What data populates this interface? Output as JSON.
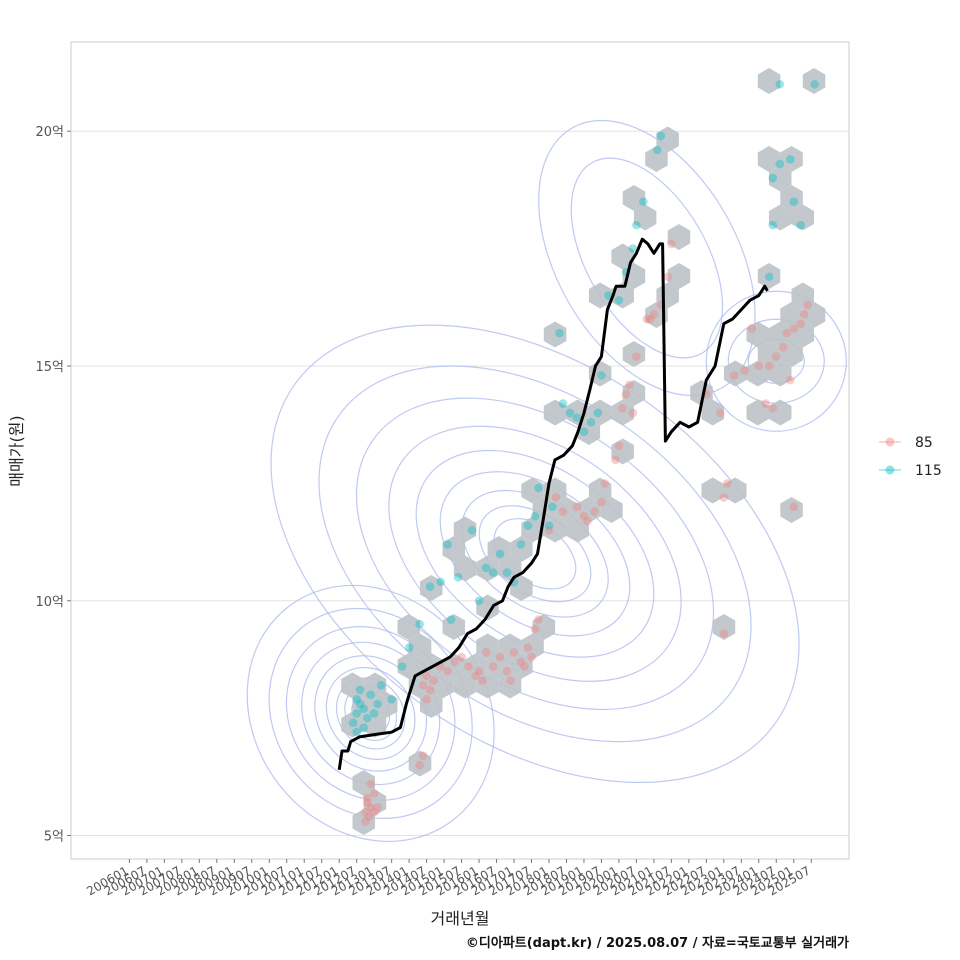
{
  "chart_data": {
    "type": "scatter",
    "title": "",
    "xlabel": "거래년월",
    "ylabel": "매매가(원)",
    "caption": "©디아파트(dapt.kr) / 2025.08.07 / 자료=국토교통부 실거래가",
    "x_tick_labels": [
      "200601",
      "200607",
      "200701",
      "200707",
      "200801",
      "200807",
      "200901",
      "200907",
      "201001",
      "201007",
      "201101",
      "201107",
      "201201",
      "201207",
      "201301",
      "201307",
      "201401",
      "201407",
      "201501",
      "201507",
      "201601",
      "201607",
      "201701",
      "201707",
      "201801",
      "201807",
      "201901",
      "201907",
      "202001",
      "202007",
      "202101",
      "202107",
      "202201",
      "202207",
      "202301",
      "202307",
      "202401",
      "202407",
      "202501",
      "202507"
    ],
    "y_tick_labels": [
      "5억",
      "10억",
      "15억",
      "20억"
    ],
    "y_tick_values": [
      5,
      10,
      15,
      20
    ],
    "ylim": [
      4.5,
      21.9
    ],
    "xlim": [
      2004.33,
      2026.58
    ],
    "grid": true,
    "legend_position": "right",
    "colors": {
      "85": "#f08080",
      "115": "#00bfc4",
      "trend": "#000000",
      "contour": "#a9b8ee",
      "hex": "#bcc2c8"
    },
    "series": [
      {
        "name": "85",
        "points": [
          [
            2012.75,
            5.3
          ],
          [
            2012.75,
            5.5
          ],
          [
            2012.8,
            5.7
          ],
          [
            2012.85,
            5.4
          ],
          [
            2012.9,
            5.6
          ],
          [
            2013.0,
            5.5
          ],
          [
            2013.0,
            5.9
          ],
          [
            2012.9,
            6.1
          ],
          [
            2013.1,
            5.6
          ],
          [
            2012.8,
            5.8
          ],
          [
            2014.4,
            8.2
          ],
          [
            2014.5,
            8.4
          ],
          [
            2014.6,
            8.1
          ],
          [
            2014.7,
            8.3
          ],
          [
            2014.5,
            7.9
          ],
          [
            2014.9,
            8.6
          ],
          [
            2015.1,
            8.5
          ],
          [
            2015.3,
            8.7
          ],
          [
            2015.5,
            8.8
          ],
          [
            2015.7,
            8.6
          ],
          [
            2015.9,
            8.4
          ],
          [
            2016.0,
            8.5
          ],
          [
            2016.2,
            8.9
          ],
          [
            2016.4,
            8.6
          ],
          [
            2016.6,
            8.8
          ],
          [
            2016.8,
            8.5
          ],
          [
            2017.0,
            8.9
          ],
          [
            2017.2,
            8.7
          ],
          [
            2017.4,
            9.0
          ],
          [
            2017.5,
            8.8
          ],
          [
            2017.6,
            9.4
          ],
          [
            2017.7,
            9.6
          ],
          [
            2017.3,
            8.6
          ],
          [
            2016.9,
            8.3
          ],
          [
            2016.1,
            8.3
          ],
          [
            2014.3,
            6.5
          ],
          [
            2014.4,
            6.7
          ],
          [
            2018.0,
            11.5
          ],
          [
            2018.2,
            12.2
          ],
          [
            2018.4,
            11.9
          ],
          [
            2018.8,
            12.0
          ],
          [
            2019.0,
            11.8
          ],
          [
            2019.1,
            11.7
          ],
          [
            2019.3,
            11.9
          ],
          [
            2019.5,
            12.1
          ],
          [
            2019.6,
            12.5
          ],
          [
            2019.9,
            13.0
          ],
          [
            2020.0,
            13.3
          ],
          [
            2020.1,
            14.1
          ],
          [
            2020.2,
            14.4
          ],
          [
            2020.3,
            14.6
          ],
          [
            2020.4,
            14.0
          ],
          [
            2020.5,
            15.2
          ],
          [
            2020.8,
            16.0
          ],
          [
            2020.9,
            16.0
          ],
          [
            2021.0,
            16.1
          ],
          [
            2021.2,
            16.3
          ],
          [
            2021.4,
            16.9
          ],
          [
            2021.5,
            17.6
          ],
          [
            2022.5,
            14.4
          ],
          [
            2023.0,
            12.2
          ],
          [
            2023.1,
            12.5
          ],
          [
            2023.3,
            14.8
          ],
          [
            2023.6,
            14.9
          ],
          [
            2023.8,
            15.8
          ],
          [
            2024.0,
            15.0
          ],
          [
            2024.2,
            14.2
          ],
          [
            2024.3,
            15.0
          ],
          [
            2024.5,
            15.2
          ],
          [
            2024.7,
            15.4
          ],
          [
            2024.8,
            15.7
          ],
          [
            2024.9,
            14.7
          ],
          [
            2025.0,
            15.8
          ],
          [
            2025.2,
            15.9
          ],
          [
            2025.3,
            16.1
          ],
          [
            2025.4,
            16.3
          ],
          [
            2025.0,
            12.0
          ],
          [
            2023.0,
            9.3
          ],
          [
            2022.9,
            14.0
          ],
          [
            2024.4,
            14.1
          ]
        ]
      },
      {
        "name": "115",
        "points": [
          [
            2012.4,
            7.4
          ],
          [
            2012.5,
            7.6
          ],
          [
            2012.6,
            7.8
          ],
          [
            2012.5,
            7.9
          ],
          [
            2012.7,
            7.7
          ],
          [
            2012.8,
            7.5
          ],
          [
            2012.6,
            8.1
          ],
          [
            2012.9,
            8.0
          ],
          [
            2013.0,
            7.6
          ],
          [
            2013.1,
            7.8
          ],
          [
            2012.5,
            7.2
          ],
          [
            2012.7,
            7.3
          ],
          [
            2013.2,
            8.2
          ],
          [
            2013.5,
            7.9
          ],
          [
            2013.8,
            8.6
          ],
          [
            2014.3,
            9.5
          ],
          [
            2014.6,
            10.3
          ],
          [
            2014.9,
            10.4
          ],
          [
            2015.1,
            11.2
          ],
          [
            2015.4,
            10.5
          ],
          [
            2015.8,
            11.5
          ],
          [
            2016.0,
            10.0
          ],
          [
            2016.2,
            10.7
          ],
          [
            2016.4,
            10.6
          ],
          [
            2016.6,
            11.0
          ],
          [
            2016.8,
            10.6
          ],
          [
            2017.0,
            10.4
          ],
          [
            2017.2,
            11.2
          ],
          [
            2017.4,
            11.6
          ],
          [
            2017.6,
            11.8
          ],
          [
            2017.7,
            12.4
          ],
          [
            2018.0,
            11.6
          ],
          [
            2018.1,
            12.0
          ],
          [
            2018.4,
            14.2
          ],
          [
            2018.6,
            14.0
          ],
          [
            2018.8,
            13.9
          ],
          [
            2019.0,
            13.6
          ],
          [
            2019.2,
            13.8
          ],
          [
            2019.4,
            14.0
          ],
          [
            2019.5,
            14.8
          ],
          [
            2019.7,
            16.5
          ],
          [
            2020.0,
            16.4
          ],
          [
            2020.2,
            17.0
          ],
          [
            2020.4,
            17.5
          ],
          [
            2020.5,
            18.0
          ],
          [
            2020.7,
            18.5
          ],
          [
            2021.1,
            19.6
          ],
          [
            2021.2,
            19.9
          ],
          [
            2018.3,
            15.7
          ],
          [
            2015.2,
            9.6
          ],
          [
            2024.3,
            16.9
          ],
          [
            2024.4,
            18.0
          ],
          [
            2024.4,
            19.0
          ],
          [
            2024.6,
            19.3
          ],
          [
            2024.9,
            19.4
          ],
          [
            2025.0,
            18.5
          ],
          [
            2025.2,
            18.0
          ],
          [
            2024.6,
            21.0
          ],
          [
            2025.6,
            21.0
          ],
          [
            2014.0,
            9.0
          ]
        ]
      },
      {
        "name": "trend",
        "points": [
          [
            2012.0,
            6.4
          ],
          [
            2012.08,
            6.8
          ],
          [
            2012.25,
            6.8
          ],
          [
            2012.33,
            7.0
          ],
          [
            2012.58,
            7.1
          ],
          [
            2013.0,
            7.15
          ],
          [
            2013.5,
            7.2
          ],
          [
            2013.75,
            7.3
          ],
          [
            2013.92,
            7.8
          ],
          [
            2014.0,
            8.0
          ],
          [
            2014.17,
            8.4
          ],
          [
            2014.42,
            8.5
          ],
          [
            2014.67,
            8.6
          ],
          [
            2014.92,
            8.7
          ],
          [
            2015.17,
            8.8
          ],
          [
            2015.42,
            9.0
          ],
          [
            2015.67,
            9.3
          ],
          [
            2015.92,
            9.4
          ],
          [
            2016.17,
            9.6
          ],
          [
            2016.42,
            9.9
          ],
          [
            2016.67,
            10.0
          ],
          [
            2016.83,
            10.3
          ],
          [
            2017.0,
            10.5
          ],
          [
            2017.25,
            10.6
          ],
          [
            2017.5,
            10.8
          ],
          [
            2017.67,
            11.0
          ],
          [
            2017.83,
            11.7
          ],
          [
            2018.0,
            12.5
          ],
          [
            2018.17,
            13.0
          ],
          [
            2018.42,
            13.1
          ],
          [
            2018.67,
            13.3
          ],
          [
            2018.83,
            13.6
          ],
          [
            2019.0,
            14.0
          ],
          [
            2019.17,
            14.5
          ],
          [
            2019.33,
            15.0
          ],
          [
            2019.5,
            15.2
          ],
          [
            2019.67,
            16.2
          ],
          [
            2019.83,
            16.5
          ],
          [
            2019.92,
            16.7
          ],
          [
            2020.17,
            16.7
          ],
          [
            2020.33,
            17.2
          ],
          [
            2020.5,
            17.4
          ],
          [
            2020.67,
            17.7
          ],
          [
            2020.83,
            17.6
          ],
          [
            2021.0,
            17.4
          ],
          [
            2021.17,
            17.6
          ],
          [
            2021.25,
            17.6
          ],
          [
            2021.33,
            13.4
          ],
          [
            2021.5,
            13.6
          ],
          [
            2021.75,
            13.8
          ],
          [
            2022.0,
            13.7
          ],
          [
            2022.25,
            13.8
          ],
          [
            2022.5,
            14.7
          ],
          [
            2022.75,
            15.0
          ],
          [
            2023.0,
            15.9
          ],
          [
            2023.25,
            16.0
          ],
          [
            2023.5,
            16.2
          ],
          [
            2023.75,
            16.4
          ],
          [
            2024.0,
            16.5
          ],
          [
            2024.17,
            16.7
          ],
          [
            2024.25,
            16.6
          ]
        ]
      }
    ],
    "legend": [
      {
        "label": "85",
        "color": "#f08080"
      },
      {
        "label": "115",
        "color": "#00bfc4"
      }
    ]
  }
}
